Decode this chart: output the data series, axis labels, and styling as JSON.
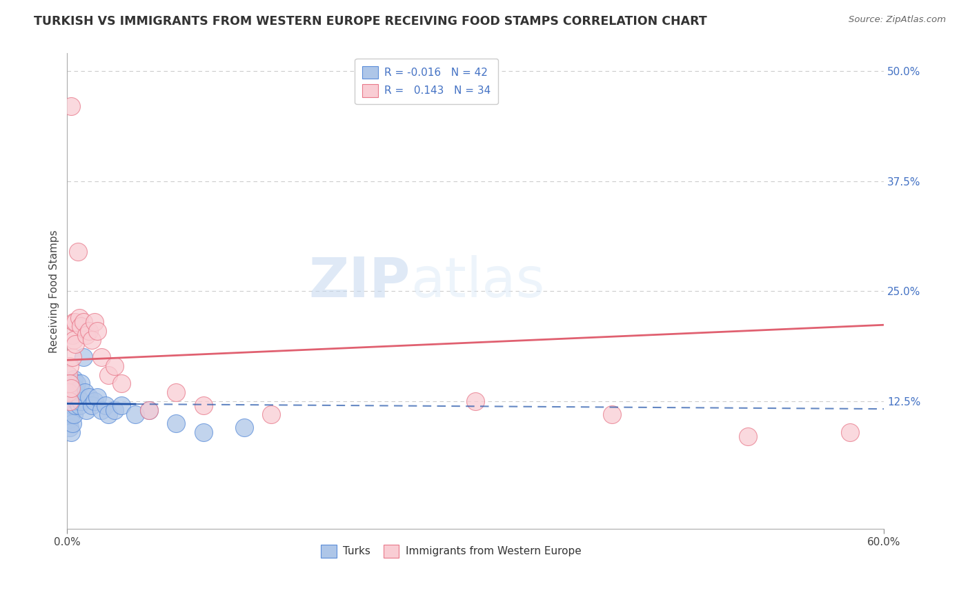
{
  "title": "TURKISH VS IMMIGRANTS FROM WESTERN EUROPE RECEIVING FOOD STAMPS CORRELATION CHART",
  "source": "Source: ZipAtlas.com",
  "ylabel": "Receiving Food Stamps",
  "xlim": [
    0.0,
    0.6
  ],
  "ylim": [
    -0.02,
    0.52
  ],
  "right_yticks": [
    0.0,
    0.125,
    0.25,
    0.375,
    0.5
  ],
  "right_yticklabels": [
    "",
    "12.5%",
    "25.0%",
    "37.5%",
    "50.0%"
  ],
  "watermark_zip": "ZIP",
  "watermark_atlas": "atlas",
  "turks_color": "#aec6e8",
  "turks_edge_color": "#5b8dd9",
  "immigrants_color": "#f9cdd4",
  "immigrants_edge_color": "#e8788a",
  "turks_line_color": "#2255aa",
  "immigrants_line_color": "#e06070",
  "turks_x": [
    0.001,
    0.001,
    0.001,
    0.002,
    0.002,
    0.002,
    0.002,
    0.003,
    0.003,
    0.003,
    0.003,
    0.004,
    0.004,
    0.004,
    0.005,
    0.005,
    0.005,
    0.006,
    0.006,
    0.007,
    0.007,
    0.008,
    0.009,
    0.01,
    0.01,
    0.012,
    0.013,
    0.014,
    0.016,
    0.018,
    0.02,
    0.022,
    0.025,
    0.028,
    0.03,
    0.035,
    0.04,
    0.05,
    0.06,
    0.08,
    0.1,
    0.13
  ],
  "turks_y": [
    0.135,
    0.125,
    0.115,
    0.14,
    0.12,
    0.105,
    0.095,
    0.145,
    0.13,
    0.11,
    0.09,
    0.14,
    0.12,
    0.1,
    0.15,
    0.13,
    0.11,
    0.14,
    0.12,
    0.145,
    0.125,
    0.13,
    0.12,
    0.145,
    0.125,
    0.175,
    0.135,
    0.115,
    0.13,
    0.12,
    0.125,
    0.13,
    0.115,
    0.12,
    0.11,
    0.115,
    0.12,
    0.11,
    0.115,
    0.1,
    0.09,
    0.095
  ],
  "immigrants_x": [
    0.001,
    0.001,
    0.002,
    0.002,
    0.002,
    0.003,
    0.003,
    0.004,
    0.004,
    0.005,
    0.005,
    0.006,
    0.006,
    0.008,
    0.009,
    0.01,
    0.012,
    0.014,
    0.016,
    0.018,
    0.02,
    0.022,
    0.025,
    0.03,
    0.035,
    0.04,
    0.06,
    0.08,
    0.1,
    0.15,
    0.3,
    0.4,
    0.5,
    0.575
  ],
  "immigrants_y": [
    0.155,
    0.135,
    0.165,
    0.145,
    0.125,
    0.46,
    0.14,
    0.2,
    0.175,
    0.215,
    0.195,
    0.215,
    0.19,
    0.295,
    0.22,
    0.21,
    0.215,
    0.2,
    0.205,
    0.195,
    0.215,
    0.205,
    0.175,
    0.155,
    0.165,
    0.145,
    0.115,
    0.135,
    0.12,
    0.11,
    0.125,
    0.11,
    0.085,
    0.09
  ],
  "turks_R": -0.016,
  "turks_N": 42,
  "immigrants_R": 0.143,
  "immigrants_N": 34
}
